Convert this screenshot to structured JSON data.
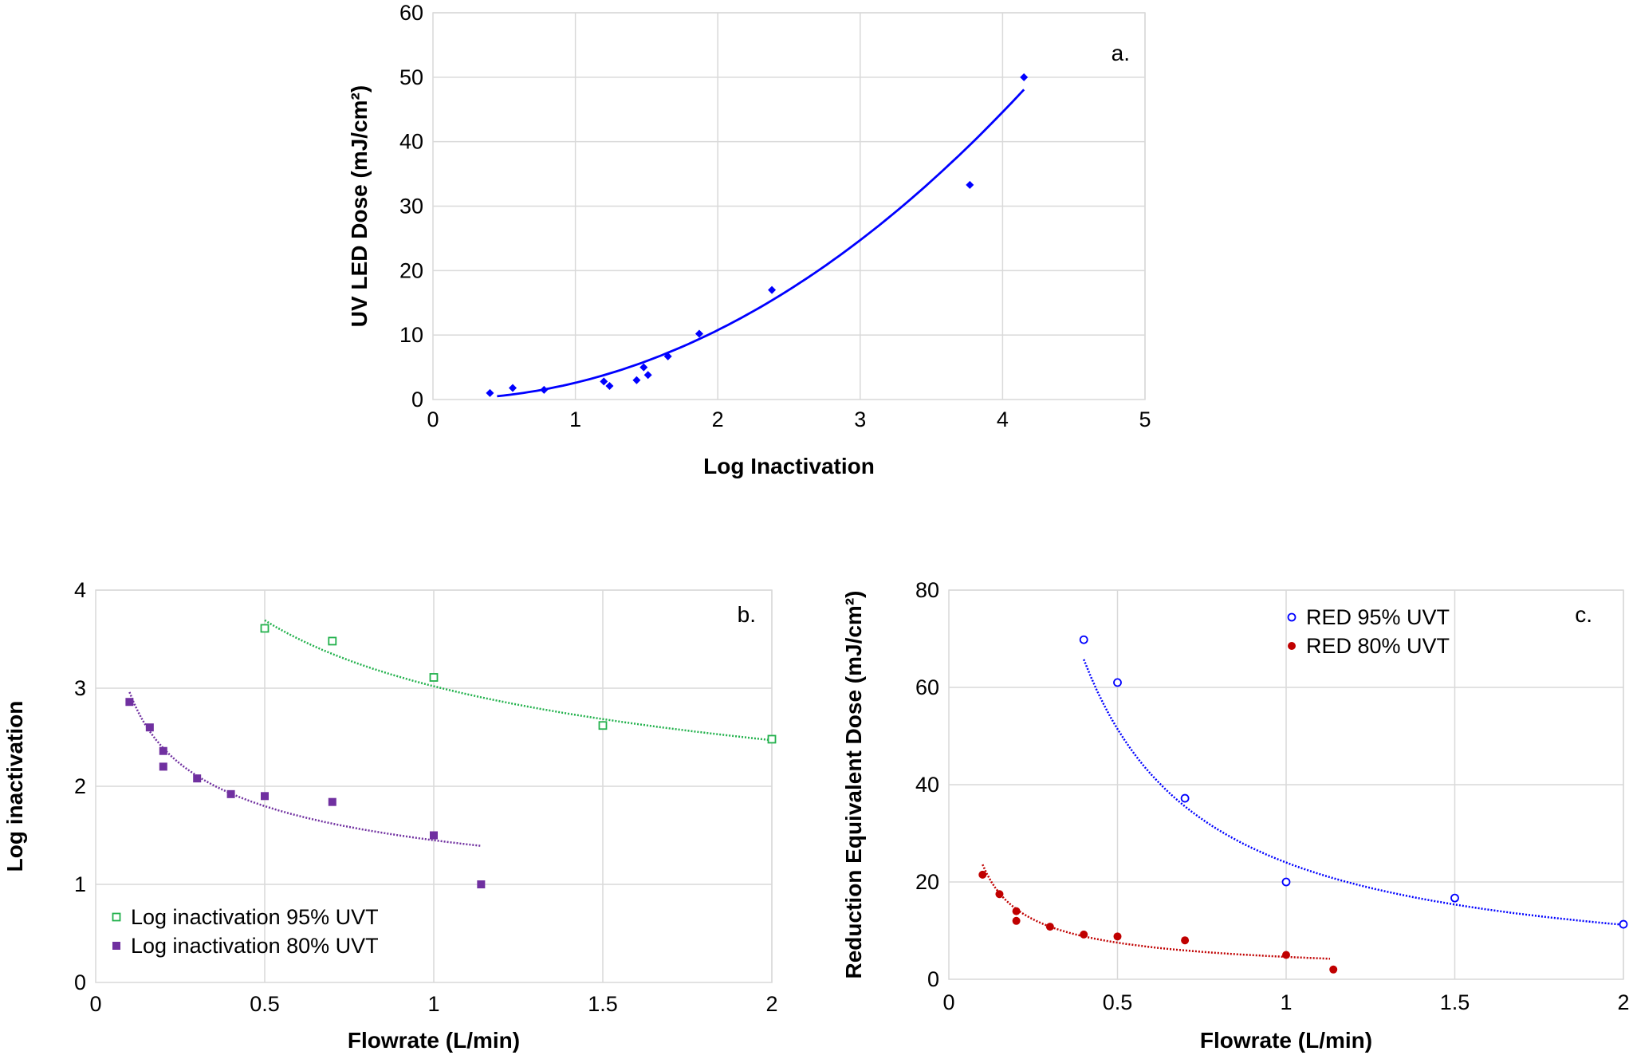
{
  "chart_data": [
    {
      "type": "scatter",
      "panel_label": "a.",
      "xlabel": "Log Inactivation",
      "ylabel": "UV LED Dose (mJ/cm²)",
      "xlim": [
        0,
        5
      ],
      "ylim": [
        0,
        60
      ],
      "xticks": [
        0,
        1,
        2,
        3,
        4,
        5
      ],
      "yticks": [
        0,
        10,
        20,
        30,
        40,
        50,
        60
      ],
      "grid": true,
      "legend": null,
      "series": [
        {
          "color": "#0000ff",
          "marker": "diamond",
          "x": [
            0.4,
            0.56,
            0.78,
            1.2,
            1.24,
            1.43,
            1.48,
            1.51,
            1.65,
            1.87,
            2.38,
            3.77,
            4.15
          ],
          "y": [
            1.0,
            1.8,
            1.5,
            2.8,
            2.1,
            3.0,
            5.0,
            3.8,
            6.7,
            10.2,
            17.0,
            33.3,
            50.0
          ],
          "trendline": {
            "kind": "power",
            "x0": 0.45,
            "x1": 4.15,
            "a": 2.6,
            "b": 2.05,
            "dashed": false
          }
        }
      ]
    },
    {
      "type": "scatter",
      "panel_label": "b.",
      "xlabel": "Flowrate (L/min)",
      "ylabel": "Log inactivation",
      "xlim": [
        0,
        2
      ],
      "ylim": [
        0,
        4
      ],
      "xticks": [
        0,
        0.5,
        1,
        1.5,
        2
      ],
      "yticks": [
        0,
        1,
        2,
        3,
        4
      ],
      "grid": true,
      "legend": "bottom-left",
      "series": [
        {
          "name": "Log inactivation 95% UVT",
          "color": "#22b14c",
          "marker": "square-open",
          "x": [
            0.5,
            0.7,
            1.0,
            1.5,
            2.0
          ],
          "y": [
            3.61,
            3.48,
            3.11,
            2.62,
            2.48
          ],
          "trendline": {
            "kind": "power",
            "x0": 0.5,
            "x1": 2.0,
            "a": 3.02,
            "b": -0.29,
            "dashed": true
          }
        },
        {
          "name": "Log inactivation 80% UVT",
          "color": "#7030a0",
          "marker": "square",
          "x": [
            0.1,
            0.16,
            0.2,
            0.2,
            0.3,
            0.4,
            0.5,
            0.7,
            1.0,
            1.14
          ],
          "y": [
            2.86,
            2.6,
            2.36,
            2.2,
            2.08,
            1.92,
            1.9,
            1.84,
            1.5,
            1.0
          ],
          "trendline": {
            "kind": "power",
            "x0": 0.1,
            "x1": 1.14,
            "a": 1.45,
            "b": -0.31,
            "dashed": true
          }
        }
      ]
    },
    {
      "type": "scatter",
      "panel_label": "c.",
      "xlabel": "Flowrate (L/min)",
      "ylabel": "Reduction Equivalent Dose (mJ/cm²)",
      "xlim": [
        0,
        2
      ],
      "ylim": [
        0,
        80
      ],
      "xticks": [
        0,
        0.5,
        1,
        1.5,
        2
      ],
      "yticks": [
        0,
        20,
        40,
        60,
        80
      ],
      "grid": true,
      "legend": "top-center",
      "series": [
        {
          "name": "RED 95% UVT",
          "color": "#0000ff",
          "marker": "circle-open",
          "x": [
            0.4,
            0.5,
            0.7,
            1.0,
            1.5,
            2.0
          ],
          "y": [
            69.8,
            61.0,
            37.2,
            20.0,
            16.7,
            11.3
          ],
          "trendline": {
            "kind": "power",
            "x0": 0.4,
            "x1": 2.0,
            "a": 24.0,
            "b": -1.1,
            "dashed": true
          }
        },
        {
          "name": "RED 80% UVT",
          "color": "#c00000",
          "marker": "circle",
          "x": [
            0.1,
            0.15,
            0.2,
            0.2,
            0.3,
            0.4,
            0.5,
            0.7,
            1.0,
            1.14
          ],
          "y": [
            21.5,
            17.5,
            14.0,
            12.0,
            10.8,
            9.2,
            8.8,
            8.0,
            5.0,
            2.0
          ],
          "trendline": {
            "kind": "power",
            "x0": 0.1,
            "x1": 1.13,
            "a": 4.6,
            "b": -0.71,
            "dashed": true
          }
        }
      ]
    }
  ]
}
